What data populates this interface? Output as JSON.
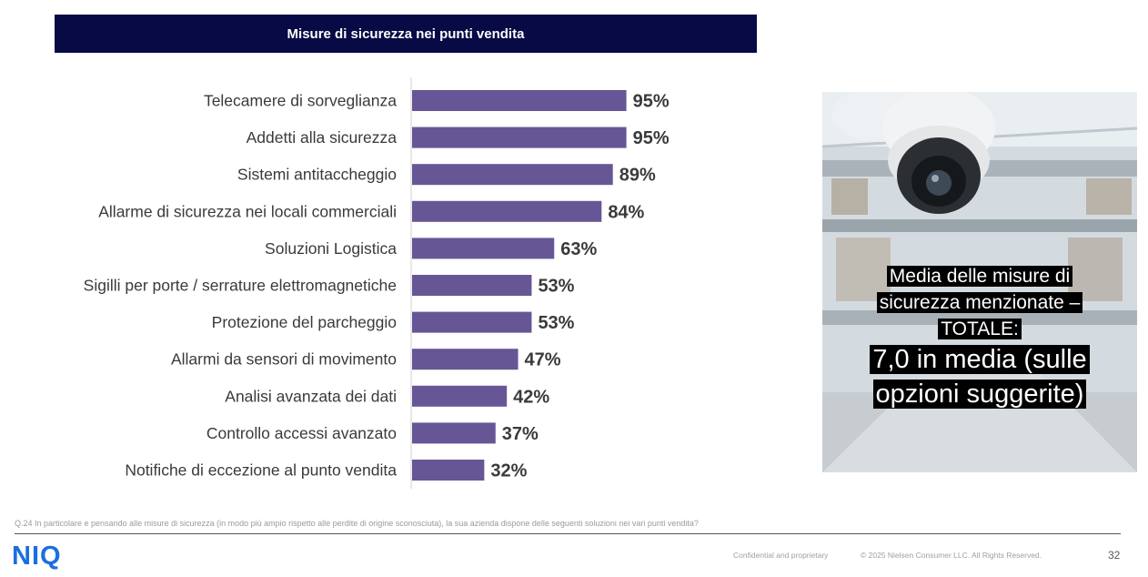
{
  "chart_data": {
    "type": "bar",
    "orientation": "horizontal",
    "title": "Misure di sicurezza nei punti vendita",
    "categories": [
      "Telecamere di sorveglianza",
      "Addetti alla sicurezza",
      "Sistemi antitaccheggio",
      "Allarme di sicurezza nei locali commerciali",
      "Soluzioni Logistica",
      "Sigilli per porte / serrature elettromagnetiche",
      "Protezione del parcheggio",
      "Allarmi da sensori di movimento",
      "Analisi avanzata dei dati",
      "Controllo accessi avanzato",
      "Notifiche di eccezione al punto vendita"
    ],
    "values": [
      95,
      95,
      89,
      84,
      63,
      53,
      53,
      47,
      42,
      37,
      32
    ],
    "value_labels": [
      "95%",
      "95%",
      "89%",
      "84%",
      "63%",
      "53%",
      "53%",
      "47%",
      "42%",
      "37%",
      "32%"
    ],
    "unit": "%",
    "xlim": [
      0,
      100
    ],
    "bar_color": "#675696"
  },
  "callout": {
    "line1": "Media delle misure di",
    "line2": "sicurezza menzionate –",
    "line3": "TOTALE:",
    "line4": "7,0 in media (sulle",
    "line5": "opzioni suggerite)"
  },
  "footnote": "Q.24 In particolare e pensando alle misure di sicurezza (in modo più ampio rispetto alle perdite di origine sconosciuta), la sua azienda dispone delle seguenti soluzioni nei vari punti vendita?",
  "footer": {
    "logo": "NIQ",
    "confidential": "Confidential and proprietary",
    "copyright": "© 2025 Nielsen Consumer LLC. All Rights Reserved.",
    "page_number": "32"
  },
  "colors": {
    "banner": "#070a45",
    "bar": "#675696",
    "logo": "#1b6fe0"
  }
}
